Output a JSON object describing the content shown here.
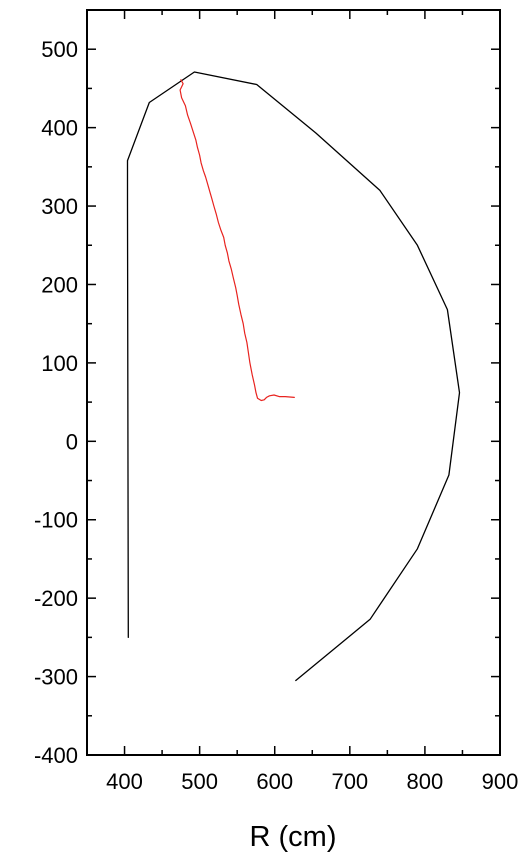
{
  "chart_data": {
    "type": "line",
    "title": "",
    "xlabel": "R (cm)",
    "ylabel": "",
    "xlim": [
      350,
      900
    ],
    "ylim": [
      -400,
      550
    ],
    "x_ticks": [
      400,
      500,
      600,
      700,
      800,
      900
    ],
    "y_ticks": [
      -400,
      -300,
      -200,
      -100,
      0,
      100,
      200,
      300,
      400,
      500
    ],
    "grid": false,
    "legend": "none",
    "series": [
      {
        "color": "#000000",
        "points": [
          [
            405,
            -250
          ],
          [
            404,
            300
          ],
          [
            404,
            358
          ],
          [
            433,
            432
          ],
          [
            493,
            471
          ],
          [
            576,
            455
          ],
          [
            655,
            393
          ],
          [
            740,
            320
          ],
          [
            790,
            250
          ],
          [
            830,
            168
          ],
          [
            846,
            62
          ],
          [
            832,
            -43
          ],
          [
            790,
            -137
          ],
          [
            727,
            -227
          ],
          [
            628,
            -305
          ]
        ]
      },
      {
        "color": "#e8231f",
        "points": [
          [
            475,
            461
          ],
          [
            478,
            456
          ],
          [
            474,
            448
          ],
          [
            476,
            438
          ],
          [
            481,
            428
          ],
          [
            484,
            416
          ],
          [
            488,
            405
          ],
          [
            492,
            393
          ],
          [
            495,
            384
          ],
          [
            497,
            375
          ],
          [
            500,
            365
          ],
          [
            502,
            355
          ],
          [
            505,
            345
          ],
          [
            508,
            337
          ],
          [
            511,
            327
          ],
          [
            514,
            317
          ],
          [
            516,
            310
          ],
          [
            519,
            300
          ],
          [
            522,
            290
          ],
          [
            525,
            279
          ],
          [
            528,
            270
          ],
          [
            532,
            260
          ],
          [
            534,
            250
          ],
          [
            537,
            240
          ],
          [
            539,
            230
          ],
          [
            542,
            220
          ],
          [
            545,
            208
          ],
          [
            548,
            196
          ],
          [
            550,
            186
          ],
          [
            552,
            175
          ],
          [
            555,
            162
          ],
          [
            558,
            150
          ],
          [
            560,
            138
          ],
          [
            563,
            126
          ],
          [
            565,
            113
          ],
          [
            567,
            100
          ],
          [
            570,
            85
          ],
          [
            573,
            72
          ],
          [
            575,
            62
          ],
          [
            577,
            55
          ],
          [
            582,
            52
          ],
          [
            586,
            53
          ],
          [
            589,
            56
          ],
          [
            593,
            58
          ],
          [
            599,
            59
          ],
          [
            606,
            57
          ],
          [
            614,
            57
          ],
          [
            626,
            56
          ]
        ]
      }
    ]
  }
}
